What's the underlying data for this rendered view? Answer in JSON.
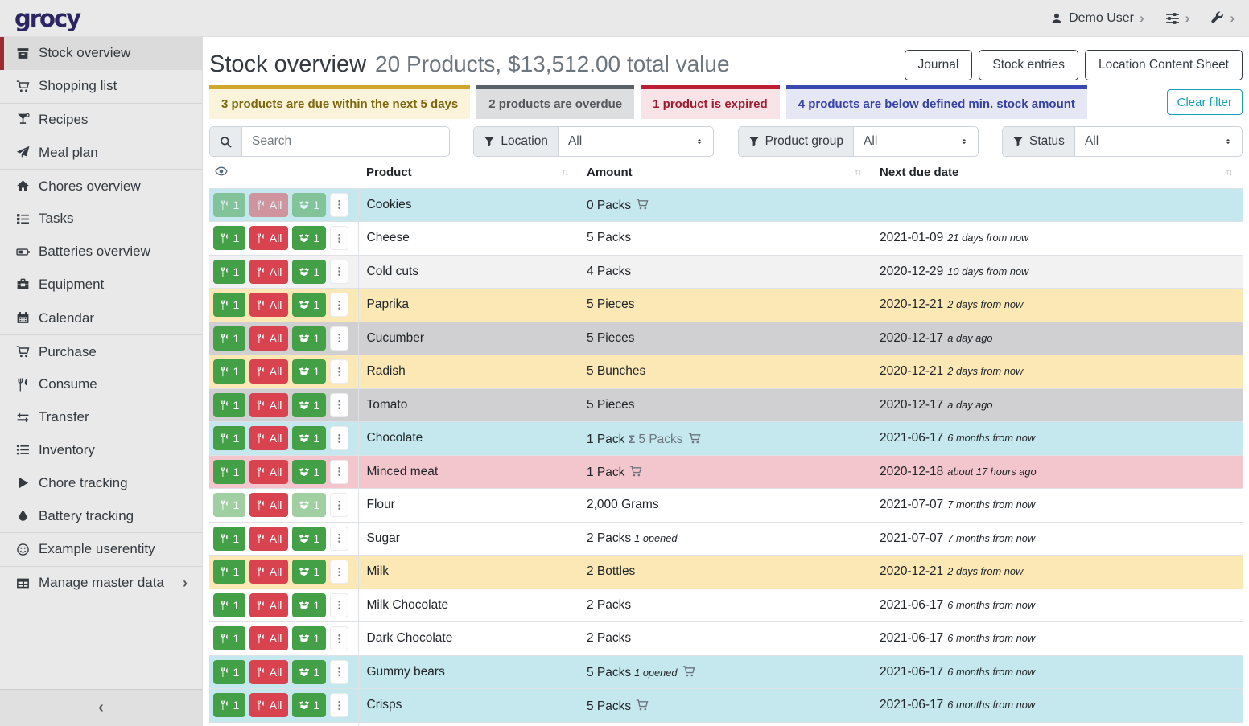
{
  "navbar": {
    "logo_text": "grocy",
    "user_label": "Demo User"
  },
  "sidebar": {
    "groups": [
      [
        {
          "icon": "stock-icon",
          "label": "Stock overview",
          "active": true
        },
        {
          "icon": "shopping-cart-icon",
          "label": "Shopping list"
        }
      ],
      [
        {
          "icon": "cocktail-icon",
          "label": "Recipes"
        },
        {
          "icon": "paper-plane-icon",
          "label": "Meal plan"
        }
      ],
      [
        {
          "icon": "home-icon",
          "label": "Chores overview"
        },
        {
          "icon": "tasks-icon",
          "label": "Tasks"
        },
        {
          "icon": "battery-icon",
          "label": "Batteries overview"
        },
        {
          "icon": "toolbox-icon",
          "label": "Equipment"
        }
      ],
      [
        {
          "icon": "calendar-icon",
          "label": "Calendar"
        }
      ],
      [
        {
          "icon": "shopping-cart-icon",
          "label": "Purchase"
        },
        {
          "icon": "utensils-icon",
          "label": "Consume"
        },
        {
          "icon": "exchange-icon",
          "label": "Transfer"
        },
        {
          "icon": "list-icon",
          "label": "Inventory"
        },
        {
          "icon": "play-icon",
          "label": "Chore tracking"
        },
        {
          "icon": "droplet-icon",
          "label": "Battery tracking"
        }
      ],
      [
        {
          "icon": "smiley-icon",
          "label": "Example userentity"
        }
      ],
      [
        {
          "icon": "table-icon",
          "label": "Manage master data",
          "chevron": true
        }
      ]
    ]
  },
  "header": {
    "title": "Stock overview",
    "subtitle": "20 Products, $13,512.00 total value",
    "buttons": [
      "Journal",
      "Stock entries",
      "Location Content Sheet"
    ]
  },
  "filters": {
    "messages": [
      {
        "type": "warning",
        "text": "3 products are due within the next 5 days"
      },
      {
        "type": "secondary",
        "text": "2 products are overdue"
      },
      {
        "type": "danger",
        "text": "1 product is expired"
      },
      {
        "type": "primary",
        "text": "4 products are below defined min. stock amount"
      }
    ],
    "clear_button": "Clear filter",
    "search_placeholder": "Search",
    "selects": [
      {
        "label": "Location",
        "value": "All"
      },
      {
        "label": "Product group",
        "value": "All"
      },
      {
        "label": "Status",
        "value": "All"
      }
    ]
  },
  "table": {
    "columns": [
      "Product",
      "Amount",
      "Next due date"
    ],
    "buttons": {
      "consume_one": "1",
      "consume_all": "All",
      "open_one": "1"
    },
    "rows": [
      {
        "product": "Cookies",
        "amount": "0 Packs",
        "cart": true,
        "color": "info",
        "disabled": [
          "consume_one",
          "consume_all",
          "open_one"
        ],
        "date": "",
        "relative": ""
      },
      {
        "product": "Cheese",
        "amount": "5 Packs",
        "color": "none",
        "date": "2021-01-09",
        "relative": "21 days from now"
      },
      {
        "product": "Cold cuts",
        "amount": "4 Packs",
        "color": "stripe",
        "date": "2020-12-29",
        "relative": "10 days from now"
      },
      {
        "product": "Paprika",
        "amount": "5 Pieces",
        "color": "warning",
        "date": "2020-12-21",
        "relative": "2 days from now"
      },
      {
        "product": "Cucumber",
        "amount": "5 Pieces",
        "color": "secondary",
        "date": "2020-12-17",
        "relative": "a day ago"
      },
      {
        "product": "Radish",
        "amount": "5 Bunches",
        "color": "warning",
        "date": "2020-12-21",
        "relative": "2 days from now"
      },
      {
        "product": "Tomato",
        "amount": "5 Pieces",
        "color": "secondary",
        "date": "2020-12-17",
        "relative": "a day ago"
      },
      {
        "product": "Chocolate",
        "amount": "1 Pack",
        "sum": "5 Packs",
        "cart": true,
        "color": "info",
        "date": "2021-06-17",
        "relative": "6 months from now"
      },
      {
        "product": "Minced meat",
        "amount": "1 Pack",
        "cart": true,
        "color": "danger",
        "date": "2020-12-18",
        "relative": "about 17 hours ago"
      },
      {
        "product": "Flour",
        "amount": "2,000 Grams",
        "color": "none",
        "disabled": [
          "consume_one",
          "open_one"
        ],
        "date": "2021-07-07",
        "relative": "7 months from now"
      },
      {
        "product": "Sugar",
        "amount": "2 Packs",
        "opened": "1 opened",
        "color": "none",
        "date": "2021-07-07",
        "relative": "7 months from now"
      },
      {
        "product": "Milk",
        "amount": "2 Bottles",
        "color": "warning",
        "date": "2020-12-21",
        "relative": "2 days from now"
      },
      {
        "product": "Milk Chocolate",
        "amount": "2 Packs",
        "color": "none",
        "date": "2021-06-17",
        "relative": "6 months from now"
      },
      {
        "product": "Dark Chocolate",
        "amount": "2 Packs",
        "color": "none",
        "date": "2021-06-17",
        "relative": "6 months from now"
      },
      {
        "product": "Gummy bears",
        "amount": "5 Packs",
        "opened": "1 opened",
        "cart": true,
        "color": "info",
        "date": "2021-06-17",
        "relative": "6 months from now"
      },
      {
        "product": "Crisps",
        "amount": "5 Packs",
        "cart": true,
        "color": "info",
        "date": "2021-06-17",
        "relative": "6 months from now"
      },
      {
        "product": "",
        "amount": "",
        "color": "none",
        "partial": true,
        "date": "",
        "relative": ""
      }
    ]
  },
  "colors": {
    "button_green": "#43a047",
    "button_red": "#d9434f",
    "row_below_min_blue": "#c5e8ee",
    "row_due_soon_yellow": "#fbe8b5",
    "row_overdue_gray": "#d0d0d2",
    "row_expired_pink": "#f3c6cd",
    "msg_warning_gold": "#cfa62e",
    "msg_secondary_gray": "#5a6268",
    "msg_danger_red": "#bb1f31",
    "msg_primary_blue": "#3a49ae",
    "clear_filter_teal": "#17a2b8",
    "logo_navy": "#2b2663",
    "active_item_red": "#9c2a33"
  }
}
